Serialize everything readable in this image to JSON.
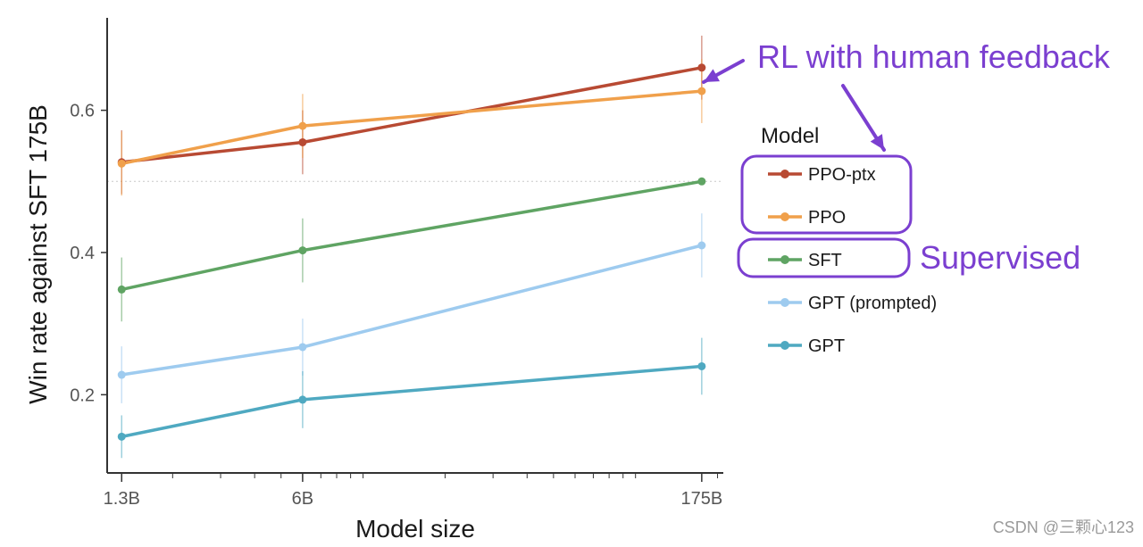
{
  "colors": {
    "annotation": "#7b3fd0",
    "axis": "#333333",
    "reference_line": "#c8c8c8"
  },
  "chart_data": {
    "type": "line",
    "xlabel": "Model size",
    "ylabel": "Win rate against SFT 175B",
    "x_scale": "log",
    "x": [
      "1.3B",
      "6B",
      "175B"
    ],
    "x_values": [
      1.3,
      6,
      175
    ],
    "xlim": [
      1.15,
      210
    ],
    "ylim": [
      0.09,
      0.73
    ],
    "y_ticks": [
      0.2,
      0.4,
      0.6
    ],
    "y_tick_labels": [
      "0.2",
      "0.4",
      "0.6"
    ],
    "reference_line": 0.5,
    "grid": false,
    "legend_title": "Model",
    "legend_position": "right",
    "series": [
      {
        "name": "PPO-ptx",
        "color": "#b84a33",
        "values": [
          0.527,
          0.555,
          0.66
        ],
        "err": [
          0.045,
          0.045,
          0.045
        ]
      },
      {
        "name": "PPO",
        "color": "#f0a04b",
        "values": [
          0.525,
          0.578,
          0.627
        ],
        "err": [
          0.045,
          0.045,
          0.045
        ]
      },
      {
        "name": "SFT",
        "color": "#5fa463",
        "values": [
          0.348,
          0.403,
          0.5
        ],
        "err": [
          0.045,
          0.045,
          0.0
        ]
      },
      {
        "name": "GPT (prompted)",
        "color": "#9ecbef",
        "values": [
          0.228,
          0.267,
          0.41
        ],
        "err": [
          0.04,
          0.04,
          0.045
        ]
      },
      {
        "name": "GPT",
        "color": "#4fa9c1",
        "values": [
          0.141,
          0.193,
          0.24
        ],
        "err": [
          0.03,
          0.04,
          0.04
        ]
      }
    ],
    "annotations": [
      {
        "text": "RL with human feedback",
        "groups": [
          "PPO-ptx",
          "PPO"
        ]
      },
      {
        "text": "Supervised",
        "groups": [
          "SFT"
        ]
      }
    ]
  },
  "watermark": "CSDN @三颗心123"
}
